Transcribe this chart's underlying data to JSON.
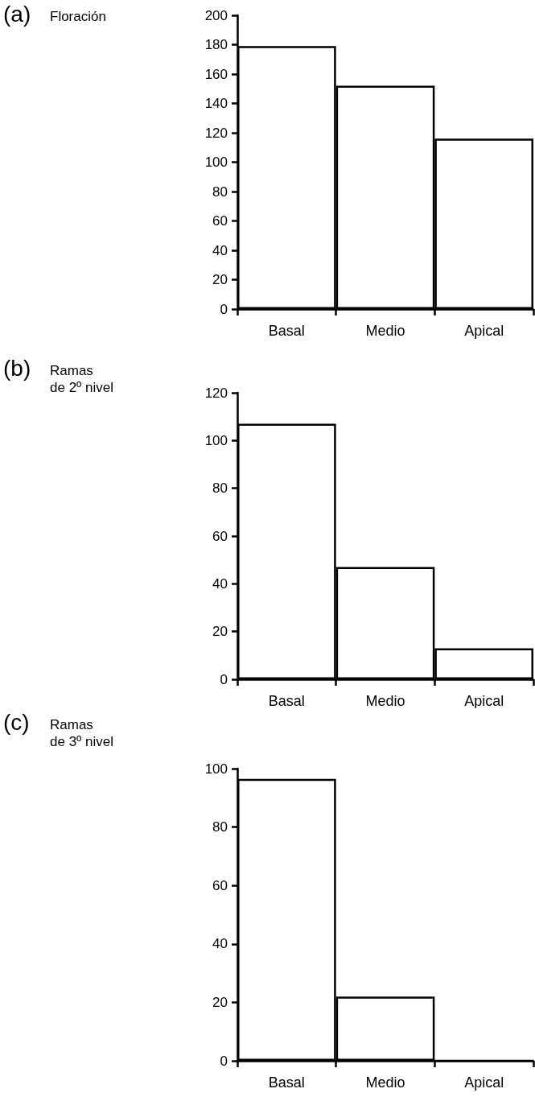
{
  "chart_data": [
    {
      "type": "bar",
      "annotations": [
        "(a)"
      ],
      "ylabel": "Floración",
      "categories": [
        "Basal",
        "Medio",
        "Apical"
      ],
      "values": [
        179,
        152,
        116
      ],
      "color": "#ffffff",
      "ylim": [
        0,
        200
      ],
      "yticks": [
        0,
        20,
        40,
        60,
        80,
        100,
        120,
        140,
        160,
        180,
        200
      ],
      "grid": false
    },
    {
      "type": "bar",
      "annotations": [
        "(b)"
      ],
      "ylabel": "Ramas\nde 2º nivel",
      "categories": [
        "Basal",
        "Medio",
        "Apical"
      ],
      "values": [
        107,
        47,
        13
      ],
      "color": "#ffffff",
      "ylim": [
        0,
        120
      ],
      "yticks": [
        0,
        20,
        40,
        60,
        80,
        100,
        120
      ],
      "grid": false
    },
    {
      "type": "bar",
      "annotations": [
        "(c)"
      ],
      "ylabel": "Ramas\nde 3º nivel",
      "categories": [
        "Basal",
        "Medio",
        "Apical"
      ],
      "values": [
        96.5,
        22,
        0
      ],
      "color": "#ffffff",
      "ylim": [
        0,
        100
      ],
      "yticks": [
        0,
        20,
        40,
        60,
        80,
        100
      ],
      "grid": false
    }
  ]
}
